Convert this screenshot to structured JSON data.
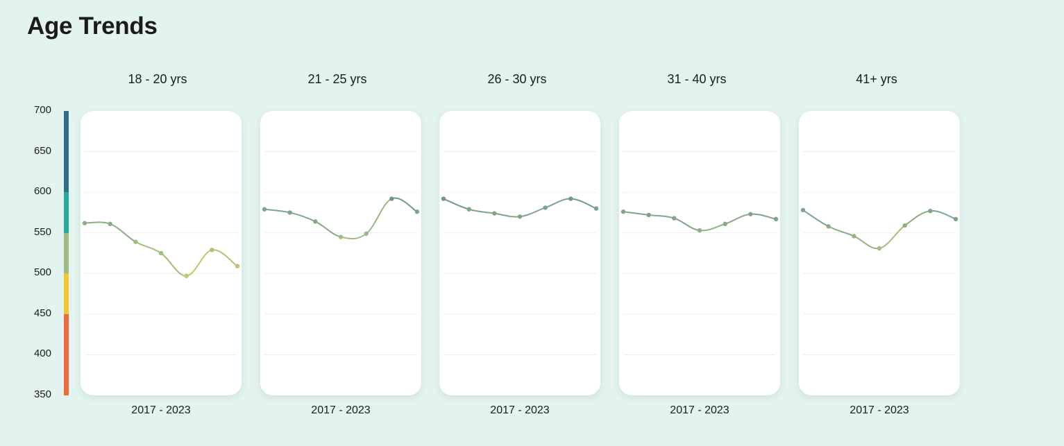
{
  "page": {
    "title": "Age Trends"
  },
  "colors": {
    "background": "#e3f3ef",
    "card": "#ffffff",
    "grid": "#ececec",
    "scale": [
      "#ee6a3a",
      "#ecc832",
      "#9fbc80",
      "#2aa89a",
      "#2f6d8d"
    ]
  },
  "chart_data": {
    "type": "line",
    "layout": "small-multiples",
    "ylim": [
      350,
      700
    ],
    "y_ticks": [
      "700",
      "650",
      "600",
      "550",
      "500",
      "450",
      "400",
      "350"
    ],
    "grid_values": [
      650,
      600,
      550,
      500,
      450,
      400
    ],
    "color_scale": [
      {
        "from": 350,
        "to": 450,
        "color": "#ee6a3a"
      },
      {
        "from": 450,
        "to": 500,
        "color": "#ecc832"
      },
      {
        "from": 500,
        "to": 550,
        "color": "#9fbc80"
      },
      {
        "from": 550,
        "to": 600,
        "color": "#2aa89a"
      },
      {
        "from": 600,
        "to": 700,
        "color": "#2f6d8d"
      }
    ],
    "x": [
      2017,
      2018,
      2019,
      2020,
      2021,
      2022,
      2023
    ],
    "panels": [
      {
        "title": "18 - 20 yrs",
        "xlabel": "2017 - 2023",
        "values": [
          562,
          561,
          539,
          525,
          497,
          529,
          509
        ],
        "point_colors": [
          "#8cab84",
          "#8cab84",
          "#a3bd7f",
          "#a3bd7f",
          "#c4c66c",
          "#b2c177",
          "#b9c475"
        ]
      },
      {
        "title": "21 - 25 yrs",
        "xlabel": "2017 - 2023",
        "values": [
          579,
          575,
          564,
          545,
          549,
          592,
          576
        ],
        "point_colors": [
          "#7fa58a",
          "#7fa58a",
          "#88aa86",
          "#9fbc80",
          "#98b882",
          "#6d9a8a",
          "#7fa58a"
        ]
      },
      {
        "title": "26 - 30 yrs",
        "xlabel": "2017 - 2023",
        "values": [
          592,
          579,
          574,
          570,
          581,
          592,
          580
        ],
        "point_colors": [
          "#6d9a8a",
          "#7fa58a",
          "#7fa58a",
          "#80a688",
          "#7aa289",
          "#6d9a8a",
          "#7aa289"
        ]
      },
      {
        "title": "31 - 40 yrs",
        "xlabel": "2017 - 2023",
        "values": [
          576,
          572,
          568,
          553,
          561,
          573,
          567
        ],
        "point_colors": [
          "#7fa58a",
          "#7fa58a",
          "#80a688",
          "#8eb084",
          "#88aa86",
          "#7fa58a",
          "#80a688"
        ]
      },
      {
        "title": "41+ yrs",
        "xlabel": "2017 - 2023",
        "values": [
          578,
          558,
          546,
          531,
          559,
          577,
          567
        ],
        "point_colors": [
          "#7fa58a",
          "#8cab84",
          "#94b283",
          "#a3bd7f",
          "#8cab84",
          "#7fa58a",
          "#80a688"
        ]
      }
    ]
  }
}
